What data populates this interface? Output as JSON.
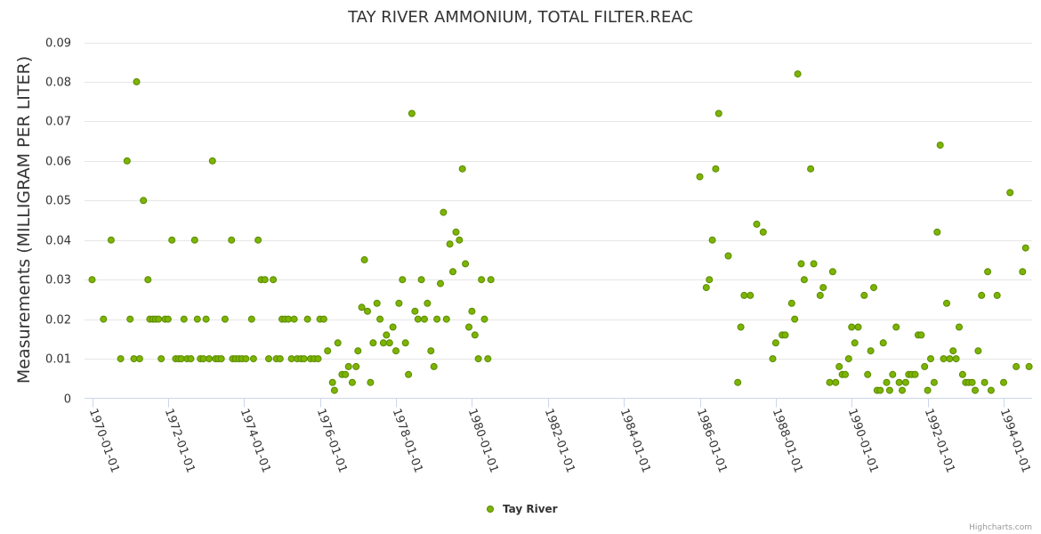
{
  "chart_data": {
    "type": "scatter",
    "title": "TAY RIVER AMMONIUM, TOTAL FILTER.REAC",
    "ylabel": "Measurements (MILLIGRAM PER LITER)",
    "xlabel": "",
    "ylim": [
      0,
      0.09
    ],
    "yticks": [
      "0",
      "0.01",
      "0.02",
      "0.03",
      "0.04",
      "0.05",
      "0.06",
      "0.07",
      "0.08",
      "0.09"
    ],
    "xlim": [
      1969.8,
      1994.75
    ],
    "xticks": [
      {
        "year": 1970,
        "label": "1970-01-01"
      },
      {
        "year": 1972,
        "label": "1972-01-01"
      },
      {
        "year": 1974,
        "label": "1974-01-01"
      },
      {
        "year": 1976,
        "label": "1976-01-01"
      },
      {
        "year": 1978,
        "label": "1978-01-01"
      },
      {
        "year": 1980,
        "label": "1980-01-01"
      },
      {
        "year": 1982,
        "label": "1982-01-01"
      },
      {
        "year": 1984,
        "label": "1984-01-01"
      },
      {
        "year": 1986,
        "label": "1986-01-01"
      },
      {
        "year": 1988,
        "label": "1988-01-01"
      },
      {
        "year": 1990,
        "label": "1990-01-01"
      },
      {
        "year": 1992,
        "label": "1992-01-01"
      },
      {
        "year": 1994,
        "label": "1994-01-01"
      }
    ],
    "grid": true,
    "legend_position": "bottom-center",
    "series": [
      {
        "name": "Tay River",
        "color": "#7cb400",
        "points": [
          [
            1970.0,
            0.03
          ],
          [
            1970.3,
            0.02
          ],
          [
            1970.5,
            0.04
          ],
          [
            1970.75,
            0.01
          ],
          [
            1970.92,
            0.06
          ],
          [
            1971.0,
            0.02
          ],
          [
            1971.1,
            0.01
          ],
          [
            1971.17,
            0.08
          ],
          [
            1971.25,
            0.01
          ],
          [
            1971.35,
            0.05
          ],
          [
            1971.47,
            0.03
          ],
          [
            1971.52,
            0.02
          ],
          [
            1971.6,
            0.02
          ],
          [
            1971.67,
            0.02
          ],
          [
            1971.75,
            0.02
          ],
          [
            1971.82,
            0.01
          ],
          [
            1971.92,
            0.02
          ],
          [
            1972.0,
            0.02
          ],
          [
            1972.1,
            0.04
          ],
          [
            1972.2,
            0.01
          ],
          [
            1972.28,
            0.01
          ],
          [
            1972.35,
            0.01
          ],
          [
            1972.42,
            0.02
          ],
          [
            1972.5,
            0.01
          ],
          [
            1972.6,
            0.01
          ],
          [
            1972.7,
            0.04
          ],
          [
            1972.77,
            0.02
          ],
          [
            1972.85,
            0.01
          ],
          [
            1972.93,
            0.01
          ],
          [
            1973.0,
            0.02
          ],
          [
            1973.08,
            0.01
          ],
          [
            1973.17,
            0.06
          ],
          [
            1973.25,
            0.01
          ],
          [
            1973.32,
            0.01
          ],
          [
            1973.4,
            0.01
          ],
          [
            1973.5,
            0.02
          ],
          [
            1973.67,
            0.04
          ],
          [
            1973.7,
            0.01
          ],
          [
            1973.78,
            0.01
          ],
          [
            1973.87,
            0.01
          ],
          [
            1973.95,
            0.01
          ],
          [
            1974.05,
            0.01
          ],
          [
            1974.2,
            0.02
          ],
          [
            1974.25,
            0.01
          ],
          [
            1974.37,
            0.04
          ],
          [
            1974.45,
            0.03
          ],
          [
            1974.55,
            0.03
          ],
          [
            1974.65,
            0.01
          ],
          [
            1974.77,
            0.03
          ],
          [
            1974.85,
            0.01
          ],
          [
            1974.95,
            0.01
          ],
          [
            1975.0,
            0.02
          ],
          [
            1975.08,
            0.02
          ],
          [
            1975.17,
            0.02
          ],
          [
            1975.25,
            0.01
          ],
          [
            1975.32,
            0.02
          ],
          [
            1975.4,
            0.01
          ],
          [
            1975.5,
            0.01
          ],
          [
            1975.58,
            0.01
          ],
          [
            1975.67,
            0.02
          ],
          [
            1975.75,
            0.01
          ],
          [
            1975.85,
            0.01
          ],
          [
            1975.95,
            0.01
          ],
          [
            1976.0,
            0.02
          ],
          [
            1976.1,
            0.02
          ],
          [
            1976.2,
            0.012
          ],
          [
            1976.33,
            0.004
          ],
          [
            1976.38,
            0.002
          ],
          [
            1976.47,
            0.014
          ],
          [
            1976.58,
            0.006
          ],
          [
            1976.67,
            0.006
          ],
          [
            1976.75,
            0.008
          ],
          [
            1976.85,
            0.004
          ],
          [
            1976.95,
            0.008
          ],
          [
            1977.0,
            0.012
          ],
          [
            1977.1,
            0.023
          ],
          [
            1977.17,
            0.035
          ],
          [
            1977.25,
            0.022
          ],
          [
            1977.33,
            0.004
          ],
          [
            1977.4,
            0.014
          ],
          [
            1977.5,
            0.024
          ],
          [
            1977.58,
            0.02
          ],
          [
            1977.67,
            0.014
          ],
          [
            1977.75,
            0.016
          ],
          [
            1977.83,
            0.014
          ],
          [
            1977.92,
            0.018
          ],
          [
            1978.0,
            0.012
          ],
          [
            1978.08,
            0.024
          ],
          [
            1978.17,
            0.03
          ],
          [
            1978.25,
            0.014
          ],
          [
            1978.33,
            0.006
          ],
          [
            1978.42,
            0.072
          ],
          [
            1978.5,
            0.022
          ],
          [
            1978.58,
            0.02
          ],
          [
            1978.67,
            0.03
          ],
          [
            1978.75,
            0.02
          ],
          [
            1978.83,
            0.024
          ],
          [
            1978.92,
            0.012
          ],
          [
            1979.0,
            0.008
          ],
          [
            1979.08,
            0.02
          ],
          [
            1979.17,
            0.029
          ],
          [
            1979.25,
            0.047
          ],
          [
            1979.33,
            0.02
          ],
          [
            1979.42,
            0.039
          ],
          [
            1979.5,
            0.032
          ],
          [
            1979.58,
            0.042
          ],
          [
            1979.67,
            0.04
          ],
          [
            1979.75,
            0.058
          ],
          [
            1979.83,
            0.034
          ],
          [
            1979.92,
            0.018
          ],
          [
            1980.0,
            0.022
          ],
          [
            1980.08,
            0.016
          ],
          [
            1980.17,
            0.01
          ],
          [
            1980.25,
            0.03
          ],
          [
            1980.33,
            0.02
          ],
          [
            1980.42,
            0.01
          ],
          [
            1980.5,
            0.03
          ],
          [
            1986.0,
            0.056
          ],
          [
            1986.17,
            0.028
          ],
          [
            1986.25,
            0.03
          ],
          [
            1986.33,
            0.04
          ],
          [
            1986.42,
            0.058
          ],
          [
            1986.5,
            0.072
          ],
          [
            1986.75,
            0.036
          ],
          [
            1987.0,
            0.004
          ],
          [
            1987.08,
            0.018
          ],
          [
            1987.17,
            0.026
          ],
          [
            1987.33,
            0.026
          ],
          [
            1987.5,
            0.044
          ],
          [
            1987.67,
            0.042
          ],
          [
            1987.92,
            0.01
          ],
          [
            1988.0,
            0.014
          ],
          [
            1988.17,
            0.016
          ],
          [
            1988.25,
            0.016
          ],
          [
            1988.42,
            0.024
          ],
          [
            1988.5,
            0.02
          ],
          [
            1988.58,
            0.082
          ],
          [
            1988.67,
            0.034
          ],
          [
            1988.75,
            0.03
          ],
          [
            1988.92,
            0.058
          ],
          [
            1989.0,
            0.034
          ],
          [
            1989.17,
            0.026
          ],
          [
            1989.25,
            0.028
          ],
          [
            1989.42,
            0.004
          ],
          [
            1989.5,
            0.032
          ],
          [
            1989.58,
            0.004
          ],
          [
            1989.67,
            0.008
          ],
          [
            1989.75,
            0.006
          ],
          [
            1989.83,
            0.006
          ],
          [
            1989.92,
            0.01
          ],
          [
            1990.0,
            0.018
          ],
          [
            1990.08,
            0.014
          ],
          [
            1990.17,
            0.018
          ],
          [
            1990.33,
            0.026
          ],
          [
            1990.42,
            0.006
          ],
          [
            1990.5,
            0.012
          ],
          [
            1990.58,
            0.028
          ],
          [
            1990.67,
            0.002
          ],
          [
            1990.75,
            0.002
          ],
          [
            1990.83,
            0.014
          ],
          [
            1990.92,
            0.004
          ],
          [
            1991.0,
            0.002
          ],
          [
            1991.08,
            0.006
          ],
          [
            1991.17,
            0.018
          ],
          [
            1991.25,
            0.004
          ],
          [
            1991.33,
            0.002
          ],
          [
            1991.42,
            0.004
          ],
          [
            1991.5,
            0.006
          ],
          [
            1991.58,
            0.006
          ],
          [
            1991.67,
            0.006
          ],
          [
            1991.75,
            0.016
          ],
          [
            1991.83,
            0.016
          ],
          [
            1991.92,
            0.008
          ],
          [
            1992.0,
            0.002
          ],
          [
            1992.08,
            0.01
          ],
          [
            1992.17,
            0.004
          ],
          [
            1992.25,
            0.042
          ],
          [
            1992.33,
            0.064
          ],
          [
            1992.42,
            0.01
          ],
          [
            1992.5,
            0.024
          ],
          [
            1992.58,
            0.01
          ],
          [
            1992.67,
            0.012
          ],
          [
            1992.75,
            0.01
          ],
          [
            1992.83,
            0.018
          ],
          [
            1992.92,
            0.006
          ],
          [
            1993.0,
            0.004
          ],
          [
            1993.08,
            0.004
          ],
          [
            1993.17,
            0.004
          ],
          [
            1993.25,
            0.002
          ],
          [
            1993.33,
            0.012
          ],
          [
            1993.42,
            0.026
          ],
          [
            1993.5,
            0.004
          ],
          [
            1993.58,
            0.032
          ],
          [
            1993.67,
            0.002
          ],
          [
            1993.83,
            0.026
          ],
          [
            1994.0,
            0.004
          ],
          [
            1994.17,
            0.052
          ],
          [
            1994.33,
            0.008
          ],
          [
            1994.5,
            0.032
          ],
          [
            1994.58,
            0.038
          ],
          [
            1994.67,
            0.008
          ]
        ]
      }
    ]
  },
  "credits": "Highcharts.com"
}
